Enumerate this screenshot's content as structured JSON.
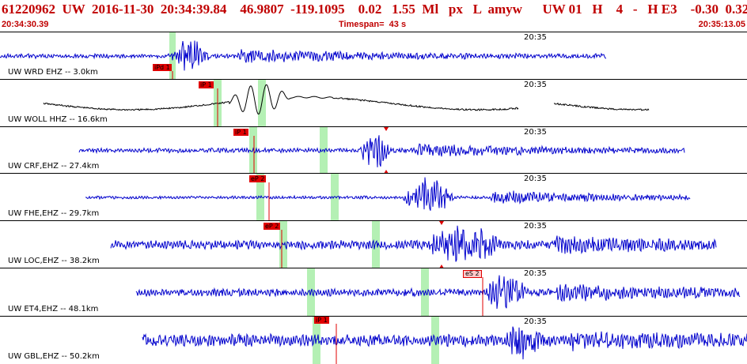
{
  "header": {
    "title": "61220962  UW  2016-11-30  20:34:39.84    46.9807  -119.1095    0.02   1.55  Ml   px   L  amyw      UW 01   H    4   -   H E3    -0.30  0.32",
    "start_time": "20:34:30.39",
    "timespan": "Timespan=  43 s",
    "end_time": "20:35:13.05"
  },
  "colors": {
    "header": "#c00000",
    "trace_blue": "#0000cc",
    "trace_black": "#000000",
    "window_green": "#b4f0b4",
    "pick_red": "#e00000",
    "pick_pink": "#ffc8c8"
  },
  "traces": [
    {
      "label": "UW WRD EHZ -- 3.0km",
      "time_label": "20:35",
      "color": "blue",
      "pick": "iPd 1"
    },
    {
      "label": "UW WOLL HHZ -- 16.6km",
      "time_label": "20:35",
      "color": "black",
      "pick": "iP 1"
    },
    {
      "label": "UW CRF,EHZ -- 27.4km",
      "time_label": "20:35",
      "color": "blue",
      "pick": "iP 1"
    },
    {
      "label": "UW FHE,EHZ -- 29.7km",
      "time_label": "20:35",
      "color": "blue",
      "pick": "eP 2"
    },
    {
      "label": "UW LOC,EHZ -- 38.2km",
      "time_label": "20:35",
      "color": "blue",
      "pick": "eP 2"
    },
    {
      "label": "UW ET4,EHZ -- 48.1km",
      "time_label": "20:35",
      "color": "blue",
      "pick": "eS 2"
    },
    {
      "label": "UW GBL,EHZ -- 50.2km",
      "time_label": "20:35",
      "color": "blue",
      "pick": "iP 1"
    }
  ]
}
